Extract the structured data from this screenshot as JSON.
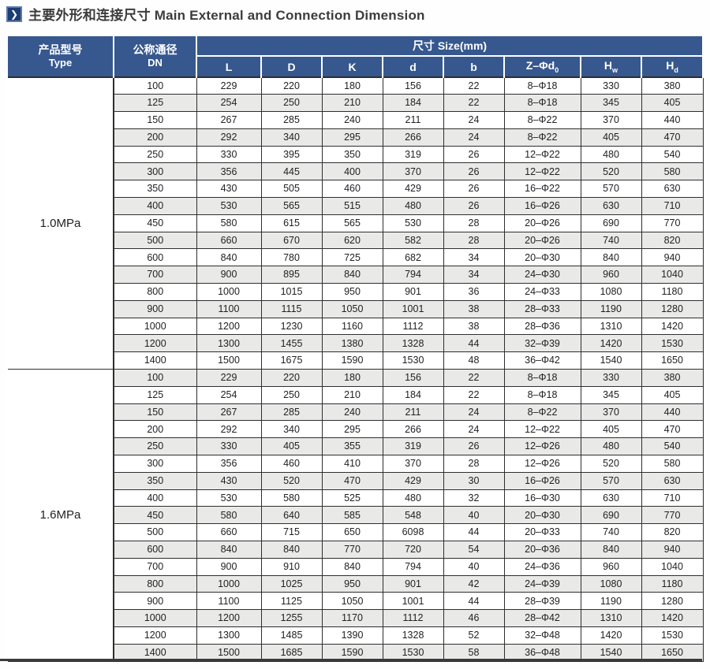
{
  "title": {
    "text": "主要外形和连接尺寸 Main External and Connection Dimension",
    "icon_glyph": "❯"
  },
  "table": {
    "headers": {
      "type_zh": "产品型号",
      "type_en": "Type",
      "dn_zh": "公称通径",
      "dn_en": "DN",
      "size_group": "尺寸 Size(mm)",
      "columns": [
        {
          "base": "L"
        },
        {
          "base": "D"
        },
        {
          "base": "K"
        },
        {
          "base": "d"
        },
        {
          "base": "b"
        },
        {
          "base": "Z–Φd",
          "sub": "0"
        },
        {
          "base": "H",
          "sub": "w"
        },
        {
          "base": "H",
          "sub": "d"
        }
      ]
    },
    "sections": [
      {
        "type": "1.0MPa",
        "rows": [
          {
            "dn": "100",
            "values": [
              "229",
              "220",
              "180",
              "156",
              "22",
              "8–Φ18",
              "330",
              "380"
            ]
          },
          {
            "dn": "125",
            "values": [
              "254",
              "250",
              "210",
              "184",
              "22",
              "8–Φ18",
              "345",
              "405"
            ]
          },
          {
            "dn": "150",
            "values": [
              "267",
              "285",
              "240",
              "211",
              "24",
              "8–Φ22",
              "370",
              "440"
            ]
          },
          {
            "dn": "200",
            "values": [
              "292",
              "340",
              "295",
              "266",
              "24",
              "8–Φ22",
              "405",
              "470"
            ]
          },
          {
            "dn": "250",
            "values": [
              "330",
              "395",
              "350",
              "319",
              "26",
              "12–Φ22",
              "480",
              "540"
            ]
          },
          {
            "dn": "300",
            "values": [
              "356",
              "445",
              "400",
              "370",
              "26",
              "12–Φ22",
              "520",
              "580"
            ]
          },
          {
            "dn": "350",
            "values": [
              "430",
              "505",
              "460",
              "429",
              "26",
              "16–Φ22",
              "570",
              "630"
            ]
          },
          {
            "dn": "400",
            "values": [
              "530",
              "565",
              "515",
              "480",
              "26",
              "16–Φ26",
              "630",
              "710"
            ]
          },
          {
            "dn": "450",
            "values": [
              "580",
              "615",
              "565",
              "530",
              "28",
              "20–Φ26",
              "690",
              "770"
            ]
          },
          {
            "dn": "500",
            "values": [
              "660",
              "670",
              "620",
              "582",
              "28",
              "20–Φ26",
              "740",
              "820"
            ]
          },
          {
            "dn": "600",
            "values": [
              "840",
              "780",
              "725",
              "682",
              "34",
              "20–Φ30",
              "840",
              "940"
            ]
          },
          {
            "dn": "700",
            "values": [
              "900",
              "895",
              "840",
              "794",
              "34",
              "24–Φ30",
              "960",
              "1040"
            ]
          },
          {
            "dn": "800",
            "values": [
              "1000",
              "1015",
              "950",
              "901",
              "36",
              "24–Φ33",
              "1080",
              "1180"
            ]
          },
          {
            "dn": "900",
            "values": [
              "1100",
              "1115",
              "1050",
              "1001",
              "38",
              "28–Φ33",
              "1190",
              "1280"
            ]
          },
          {
            "dn": "1000",
            "values": [
              "1200",
              "1230",
              "1160",
              "1112",
              "38",
              "28–Φ36",
              "1310",
              "1420"
            ]
          },
          {
            "dn": "1200",
            "values": [
              "1300",
              "1455",
              "1380",
              "1328",
              "44",
              "32–Φ39",
              "1420",
              "1530"
            ]
          },
          {
            "dn": "1400",
            "values": [
              "1500",
              "1675",
              "1590",
              "1530",
              "48",
              "36–Φ42",
              "1540",
              "1650"
            ]
          }
        ]
      },
      {
        "type": "1.6MPa",
        "rows": [
          {
            "dn": "100",
            "values": [
              "229",
              "220",
              "180",
              "156",
              "22",
              "8–Φ18",
              "330",
              "380"
            ]
          },
          {
            "dn": "125",
            "values": [
              "254",
              "250",
              "210",
              "184",
              "22",
              "8–Φ18",
              "345",
              "405"
            ]
          },
          {
            "dn": "150",
            "values": [
              "267",
              "285",
              "240",
              "211",
              "24",
              "8–Φ22",
              "370",
              "440"
            ]
          },
          {
            "dn": "200",
            "values": [
              "292",
              "340",
              "295",
              "266",
              "24",
              "12–Φ22",
              "405",
              "470"
            ]
          },
          {
            "dn": "250",
            "values": [
              "330",
              "405",
              "355",
              "319",
              "26",
              "12–Φ26",
              "480",
              "540"
            ]
          },
          {
            "dn": "300",
            "values": [
              "356",
              "460",
              "410",
              "370",
              "28",
              "12–Φ26",
              "520",
              "580"
            ]
          },
          {
            "dn": "350",
            "values": [
              "430",
              "520",
              "470",
              "429",
              "30",
              "16–Φ26",
              "570",
              "630"
            ]
          },
          {
            "dn": "400",
            "values": [
              "530",
              "580",
              "525",
              "480",
              "32",
              "16–Φ30",
              "630",
              "710"
            ]
          },
          {
            "dn": "450",
            "values": [
              "580",
              "640",
              "585",
              "548",
              "40",
              "20–Φ30",
              "690",
              "770"
            ]
          },
          {
            "dn": "500",
            "values": [
              "660",
              "715",
              "650",
              "6098",
              "44",
              "20–Φ33",
              "740",
              "820"
            ]
          },
          {
            "dn": "600",
            "values": [
              "840",
              "840",
              "770",
              "720",
              "54",
              "20–Φ36",
              "840",
              "940"
            ]
          },
          {
            "dn": "700",
            "values": [
              "900",
              "910",
              "840",
              "794",
              "40",
              "24–Φ36",
              "960",
              "1040"
            ]
          },
          {
            "dn": "800",
            "values": [
              "1000",
              "1025",
              "950",
              "901",
              "42",
              "24–Φ39",
              "1080",
              "1180"
            ]
          },
          {
            "dn": "900",
            "values": [
              "1100",
              "1125",
              "1050",
              "1001",
              "44",
              "28–Φ39",
              "1190",
              "1280"
            ]
          },
          {
            "dn": "1000",
            "values": [
              "1200",
              "1255",
              "1170",
              "1112",
              "46",
              "28–Φ42",
              "1310",
              "1420"
            ]
          },
          {
            "dn": "1200",
            "values": [
              "1300",
              "1485",
              "1390",
              "1328",
              "52",
              "32–Φ48",
              "1420",
              "1530"
            ]
          },
          {
            "dn": "1400",
            "values": [
              "1500",
              "1685",
              "1590",
              "1530",
              "58",
              "36–Φ48",
              "1540",
              "1650"
            ]
          }
        ]
      }
    ]
  },
  "colors": {
    "header_blue": "#36588e",
    "stripe_gray": "#e9e9e8",
    "border_dark": "#2e2e2e",
    "icon_navy": "#1c3c74",
    "icon_border": "#5d7bab",
    "text_dark": "#222222"
  }
}
